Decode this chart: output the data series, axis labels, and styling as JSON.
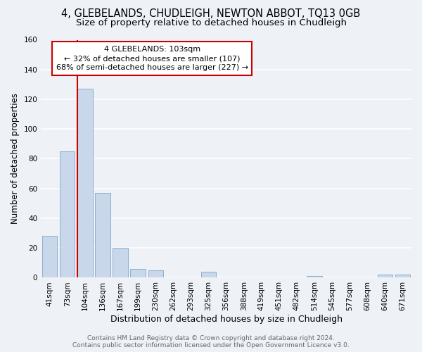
{
  "title": "4, GLEBELANDS, CHUDLEIGH, NEWTON ABBOT, TQ13 0GB",
  "subtitle": "Size of property relative to detached houses in Chudleigh",
  "xlabel": "Distribution of detached houses by size in Chudleigh",
  "ylabel": "Number of detached properties",
  "bar_labels": [
    "41sqm",
    "73sqm",
    "104sqm",
    "136sqm",
    "167sqm",
    "199sqm",
    "230sqm",
    "262sqm",
    "293sqm",
    "325sqm",
    "356sqm",
    "388sqm",
    "419sqm",
    "451sqm",
    "482sqm",
    "514sqm",
    "545sqm",
    "577sqm",
    "608sqm",
    "640sqm",
    "671sqm"
  ],
  "bar_values": [
    28,
    85,
    127,
    57,
    20,
    6,
    5,
    0,
    0,
    4,
    0,
    0,
    0,
    0,
    0,
    1,
    0,
    0,
    0,
    2,
    2
  ],
  "bar_color": "#c8d8ea",
  "bar_edge_color": "#8ab0cc",
  "highlight_bar_index": 2,
  "highlight_line_color": "#cc0000",
  "ylim": [
    0,
    160
  ],
  "yticks": [
    0,
    20,
    40,
    60,
    80,
    100,
    120,
    140,
    160
  ],
  "annotation_title": "4 GLEBELANDS: 103sqm",
  "annotation_line1": "← 32% of detached houses are smaller (107)",
  "annotation_line2": "68% of semi-detached houses are larger (227) →",
  "annotation_box_color": "#ffffff",
  "annotation_box_edge_color": "#cc0000",
  "footer_line1": "Contains HM Land Registry data © Crown copyright and database right 2024.",
  "footer_line2": "Contains public sector information licensed under the Open Government Licence v3.0.",
  "background_color": "#eef2f7",
  "grid_color": "#ffffff",
  "title_fontsize": 10.5,
  "subtitle_fontsize": 9.5,
  "xlabel_fontsize": 9,
  "ylabel_fontsize": 8.5,
  "tick_fontsize": 7.5,
  "footer_fontsize": 6.5
}
